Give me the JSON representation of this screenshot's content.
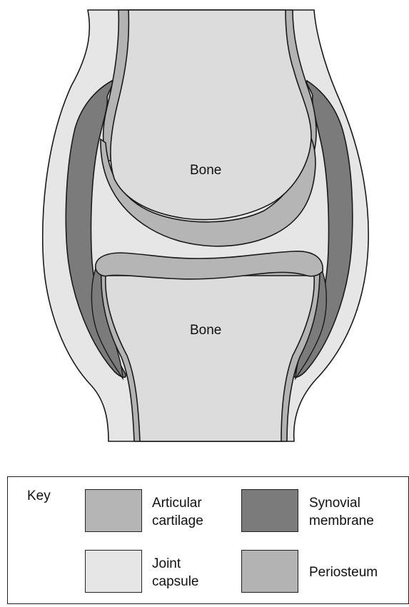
{
  "diagram": {
    "upper_bone_label": "Bone",
    "lower_bone_label": "Bone"
  },
  "key": {
    "title": "Key",
    "items": [
      {
        "label": "Articular\ncartilage",
        "color": "#b5b5b5",
        "icon": "articular-cartilage-swatch"
      },
      {
        "label": "Synovial\nmembrane",
        "color": "#7b7b7b",
        "icon": "synovial-membrane-swatch"
      },
      {
        "label": "Joint\ncapsule",
        "color": "#e6e6e6",
        "icon": "joint-capsule-swatch"
      },
      {
        "label": "Periosteum",
        "color": "#b3b3b3",
        "icon": "periosteum-swatch"
      }
    ]
  },
  "colors": {
    "bone": "#dcdcdc",
    "outline": "#1a1a1a"
  }
}
